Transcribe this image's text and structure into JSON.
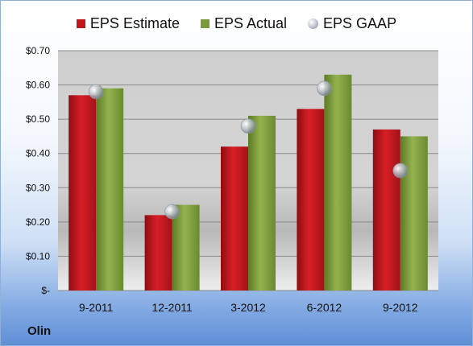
{
  "company": "Olin",
  "legend": {
    "estimate": "EPS Estimate",
    "actual": "EPS Actual",
    "gaap": "EPS GAAP"
  },
  "colors": {
    "estimate": "#c0161c",
    "actual": "#7a9a3a",
    "gaap": "#b9c0c8",
    "plot_bg_top": "#c9c9c9",
    "plot_bg_bottom": "#e8e8e8"
  },
  "chart_data": {
    "type": "bar",
    "categories": [
      "9-2011",
      "12-2011",
      "3-2012",
      "6-2012",
      "9-2012"
    ],
    "series": [
      {
        "name": "EPS Estimate",
        "type": "bar",
        "values": [
          0.57,
          0.22,
          0.42,
          0.53,
          0.47
        ]
      },
      {
        "name": "EPS Actual",
        "type": "bar",
        "values": [
          0.59,
          0.25,
          0.51,
          0.63,
          0.45
        ]
      },
      {
        "name": "EPS GAAP",
        "type": "scatter",
        "values": [
          0.58,
          0.23,
          0.48,
          0.59,
          0.35
        ]
      }
    ],
    "ylim": [
      0,
      0.7
    ],
    "yticks": [
      0,
      0.1,
      0.2,
      0.3,
      0.4,
      0.5,
      0.6,
      0.7
    ],
    "ytick_labels": [
      "$-",
      "$0.10",
      "$0.20",
      "$0.30",
      "$0.40",
      "$0.50",
      "$0.60",
      "$0.70"
    ],
    "grid": true,
    "legend_position": "top"
  }
}
